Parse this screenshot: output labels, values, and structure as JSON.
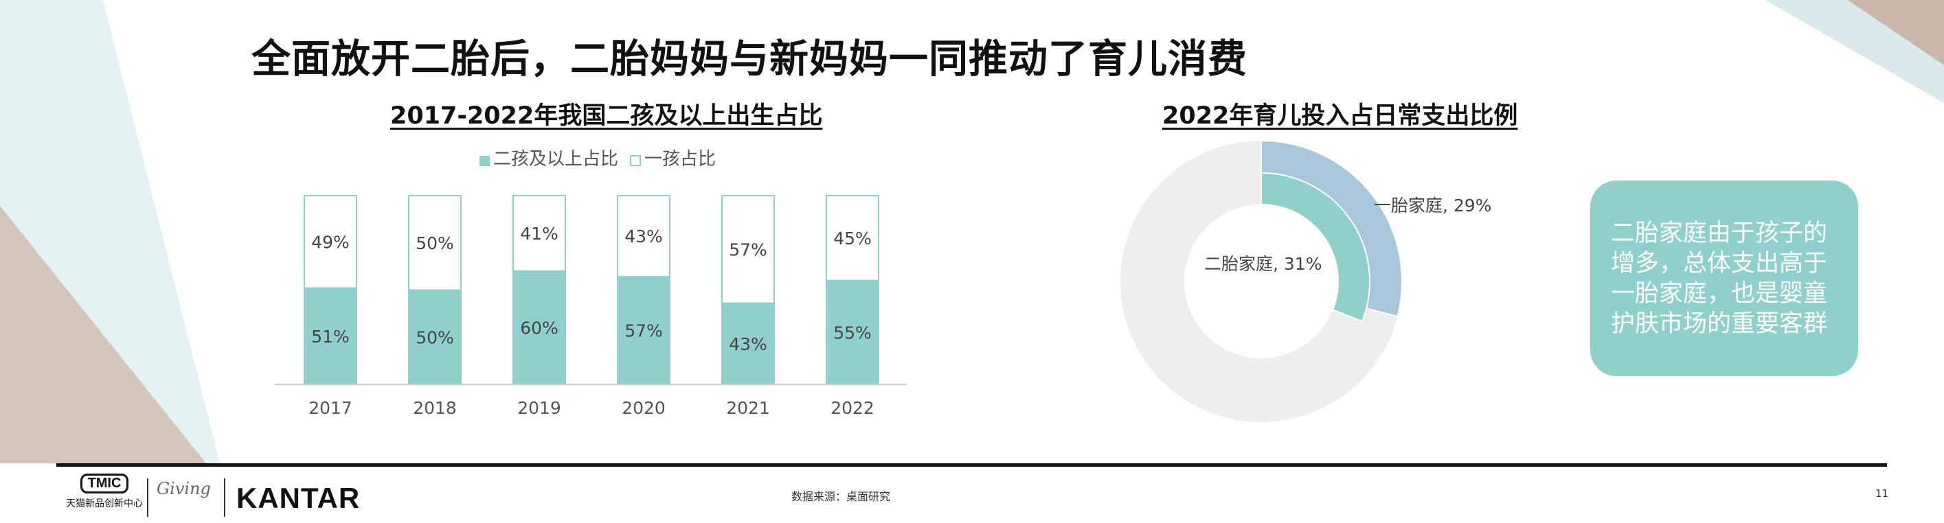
{
  "title": "全面放开二胎后，二胎妈妈与新妈妈一同推动了育儿消费",
  "left_subtitle": "2017-2022年我国二孩及以上出生占比",
  "right_subtitle": "2022年育儿投入占日常支出比例",
  "callout": "二胎家庭由于孩子的增多，总体支出高于一胎家庭，也是婴童护肤市场的重要客群",
  "source": "数据来源：桌面研究",
  "page_number": "11",
  "logos": {
    "tmic_badge": "TMIC",
    "tmic_text": "天猫新品创新中心",
    "giving": "Giving",
    "kantar": "KANTAR"
  },
  "colors": {
    "teal": "#8fd0cd",
    "light_blue": "#a9c6da",
    "ring_gray": "#eeeeee",
    "outline": "#8fd0cd"
  },
  "chart_data": [
    {
      "type": "bar",
      "stacked": true,
      "categories": [
        "2017",
        "2018",
        "2019",
        "2020",
        "2021",
        "2022"
      ],
      "series": [
        {
          "name": "二孩及以上占比",
          "values": [
            51,
            50,
            60,
            57,
            43,
            55
          ],
          "labels": [
            "51%",
            "50%",
            "60%",
            "57%",
            "43%",
            "55%"
          ],
          "color": "#8fd0cd"
        },
        {
          "name": "一孩占比",
          "values": [
            49,
            50,
            41,
            43,
            57,
            45
          ],
          "labels": [
            "49%",
            "50%",
            "41%",
            "43%",
            "57%",
            "45%"
          ],
          "color": "#ffffff"
        }
      ],
      "legend": "top",
      "ylim": [
        0,
        100
      ],
      "grid": false
    },
    {
      "type": "pie",
      "variant": "nested-donut",
      "rings": [
        {
          "ring": "outer",
          "name": "一胎家庭",
          "value": 29,
          "label": "一胎家庭, 29%",
          "color": "#a9c6da"
        },
        {
          "ring": "inner",
          "name": "二胎家庭",
          "value": 31,
          "label": "二胎家庭, 31%",
          "color": "#8fd0cd"
        }
      ],
      "remainder_color": "#eeeeee"
    }
  ]
}
